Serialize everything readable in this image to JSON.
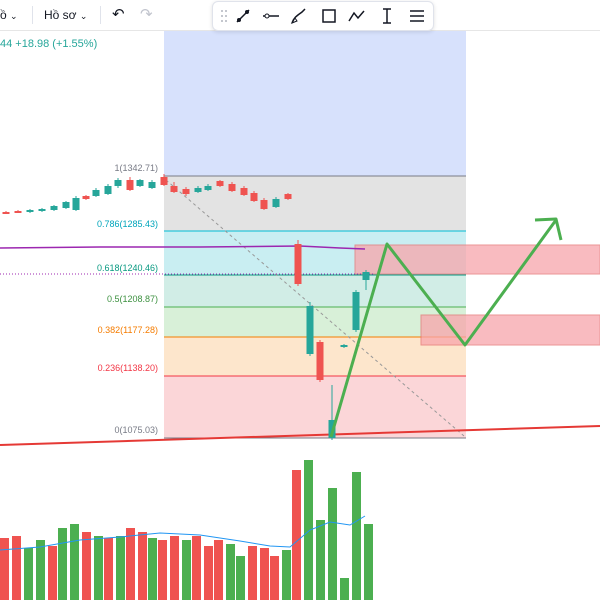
{
  "toolbar": {
    "left_item": "ồ",
    "profile_label": "Hồ sơ",
    "undo_icon": "undo-icon",
    "redo_icon": "redo-icon",
    "tools": [
      "drag-handle-icon",
      "brush-icon",
      "line-icon",
      "pencil-icon",
      "rectangle-icon",
      "path-icon",
      "text-cursor-icon",
      "list-settings-icon"
    ]
  },
  "ticker": {
    "change_text": "44 +18.98 (+1.55%)"
  },
  "fib": {
    "levels": [
      {
        "label": "1(1342.71)",
        "color": "#787b86"
      },
      {
        "label": "0.786(1285.43)",
        "color": "#00bcd4"
      },
      {
        "label": "0.618(1240.46)",
        "color": "#089981"
      },
      {
        "label": "0.5(1208.87)",
        "color": "#4caf50"
      },
      {
        "label": "0.382(1177.28)",
        "color": "#f57c00"
      },
      {
        "label": "0.236(1138.20)",
        "color": "#f23645"
      },
      {
        "label": "0(1075.03)",
        "color": "#787b86"
      }
    ]
  },
  "colors": {
    "up": "#26a69a",
    "down": "#ef5350",
    "vol_up": "#4caf50",
    "vol_down": "#ef5350",
    "ma": "#9c27b0",
    "projection": "#4caf50",
    "trend": "#e53935",
    "zone": "#f8a5ab"
  }
}
